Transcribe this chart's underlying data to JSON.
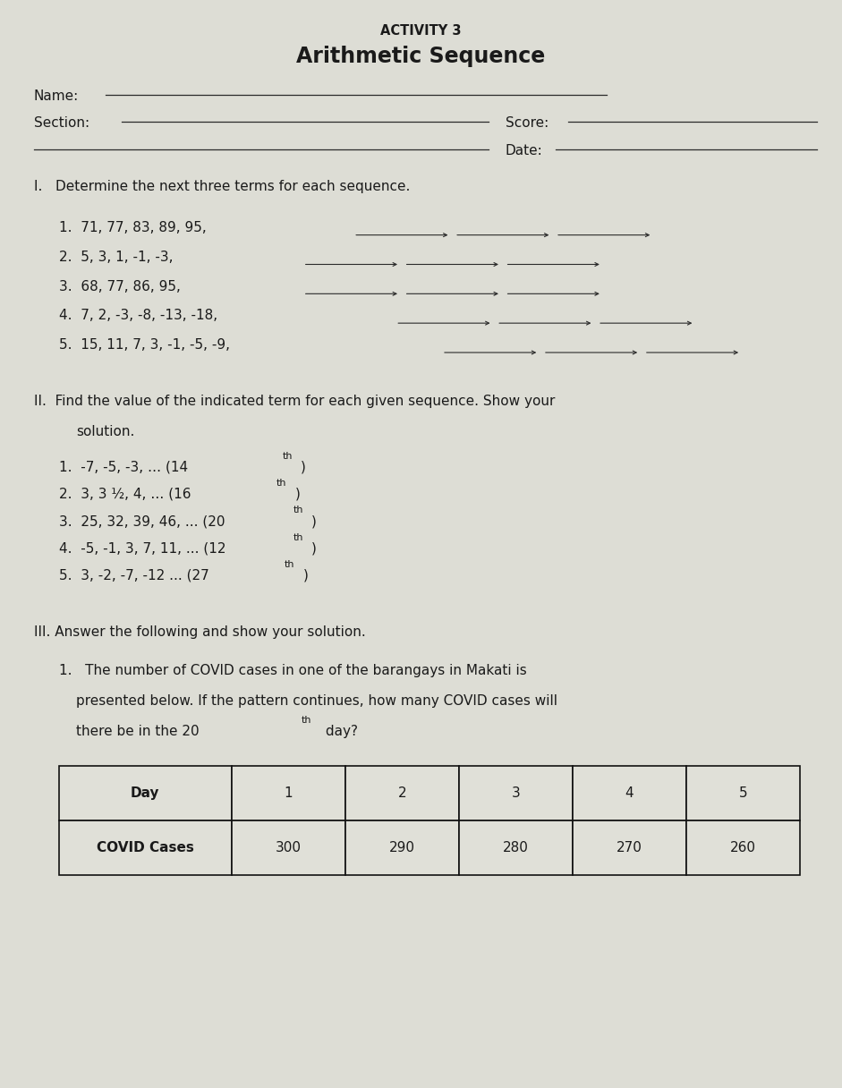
{
  "title_line1": "ACTIVITY 3",
  "title_line2": "Arithmetic Sequence",
  "bg_color": "#b8b8a8",
  "paper_color": "#c8c8bc",
  "text_color": "#1a1a1a",
  "name_label": "Name:",
  "section_label": "Section:",
  "score_label": "Score:",
  "date_label": "Date:",
  "part1_items": [
    "1.  71, 77, 83, 89, 95,",
    "2.  5, 3, 1, -1, -3,",
    "3.  68, 77, 86, 95,",
    "4.  7, 2, -3, -8, -13, -18,",
    "5.  15, 11, 7, 3, -1, -5, -9,"
  ],
  "part2_items": [
    "1.  -7, -5, -3, … (14th)",
    "2.  3, 3 ½, 4, … (16th)",
    "3.  25, 32, 39, 46, ... (20th)",
    "4.  -5, -1, 3, 7, 11, ... (12th)",
    "5.  3, -2, -7, -12 ... (27th)"
  ],
  "part2_supers": [
    "th",
    "th",
    "th",
    "th",
    "th"
  ],
  "part2_bases": [
    "1.  -7, -5, -3, … (14",
    "2.  3, 3 ½, 4, … (16",
    "3.  25, 32, 39, 46, ... (20",
    "4.  -5, -1, 3, 7, 11, ... (12",
    "5.  3, -2, -7, -12 ... (27"
  ],
  "part2_tails": [
    ")",
    ")",
    ")",
    ")",
    ")"
  ],
  "table_headers": [
    "Day",
    "1",
    "2",
    "3",
    "4",
    "5"
  ],
  "table_row": [
    "COVID Cases",
    "300",
    "290",
    "280",
    "270",
    "260"
  ]
}
